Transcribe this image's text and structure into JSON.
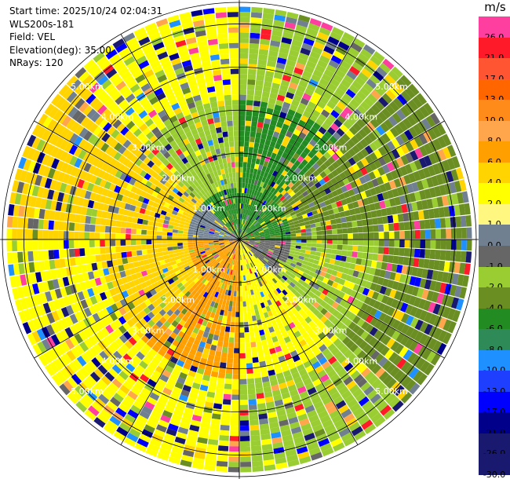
{
  "header": {
    "start_time": "Start time: 2025/10/24 02:04:31",
    "instrument": "WLS200s-181",
    "field": "Field: VEL",
    "elevation": "Elevation(deg): 35.00",
    "nrays": "NRays: 120"
  },
  "chart_data": {
    "type": "heatmap",
    "projection": "polar-ppi",
    "max_range_km": 5.5,
    "range_rings_km": [
      1.0,
      2.0,
      3.0,
      4.0,
      5.0
    ],
    "ring_labels": [
      "1.00km",
      "2.00km",
      "3.00km",
      "4.00km",
      "5.00km"
    ],
    "nrays": 120,
    "colorbar": {
      "unit": "m/s",
      "bins": [
        {
          "label": "26.0",
          "color": "#ff3fa0"
        },
        {
          "label": "21.0",
          "color": "#ff1a2a"
        },
        {
          "label": "17.0",
          "color": "#ff5533"
        },
        {
          "label": "13.0",
          "color": "#ff6600"
        },
        {
          "label": "10.0",
          "color": "#ff8c1a"
        },
        {
          "label": "8.0",
          "color": "#ffa64d"
        },
        {
          "label": "6.0",
          "color": "#ff9f00"
        },
        {
          "label": "4.0",
          "color": "#ffd400"
        },
        {
          "label": "2.0",
          "color": "#ffff00"
        },
        {
          "label": "1.0",
          "color": "#fff780"
        },
        {
          "label": "0.0",
          "color": "#708090"
        },
        {
          "label": "-1.0",
          "color": "#666666"
        },
        {
          "label": "-2.0",
          "color": "#9acd32"
        },
        {
          "label": "-4.0",
          "color": "#6b8e23"
        },
        {
          "label": "-6.0",
          "color": "#228b22"
        },
        {
          "label": "-8.0",
          "color": "#2e8b57"
        },
        {
          "label": "-10.0",
          "color": "#1e90ff"
        },
        {
          "label": "-13.0",
          "color": "#1f3fff"
        },
        {
          "label": "-17.0",
          "color": "#0000ff"
        },
        {
          "label": "-21.0",
          "color": "#00008b"
        },
        {
          "label": "-26.0",
          "color": "#191970"
        },
        {
          "label": "-30.0",
          "color": "#191970"
        }
      ]
    },
    "velocity_pattern": {
      "description_free": true,
      "sectors": [
        {
          "az_from": 315,
          "az_to": 360,
          "near": "#228b22",
          "mid": "#9acd32",
          "far": "#ffff00"
        },
        {
          "az_from": 0,
          "az_to": 45,
          "near": "#228b22",
          "mid": "#228b22",
          "far": "#9acd32"
        },
        {
          "az_from": 45,
          "az_to": 90,
          "near": "#228b22",
          "mid": "#6b8e23",
          "far": "#6b8e23"
        },
        {
          "az_from": 90,
          "az_to": 135,
          "near": "#666666",
          "mid": "#9acd32",
          "far": "#6b8e23"
        },
        {
          "az_from": 135,
          "az_to": 180,
          "near": "#ffff00",
          "mid": "#ffff00",
          "far": "#9acd32"
        },
        {
          "az_from": 180,
          "az_to": 225,
          "near": "#ff9f00",
          "mid": "#ff9f00",
          "far": "#ffff00"
        },
        {
          "az_from": 225,
          "az_to": 270,
          "near": "#ff9f00",
          "mid": "#ffd400",
          "far": "#ffff00"
        },
        {
          "az_from": 270,
          "az_to": 315,
          "near": "#708090",
          "mid": "#ffd400",
          "far": "#ffd400"
        }
      ]
    }
  }
}
